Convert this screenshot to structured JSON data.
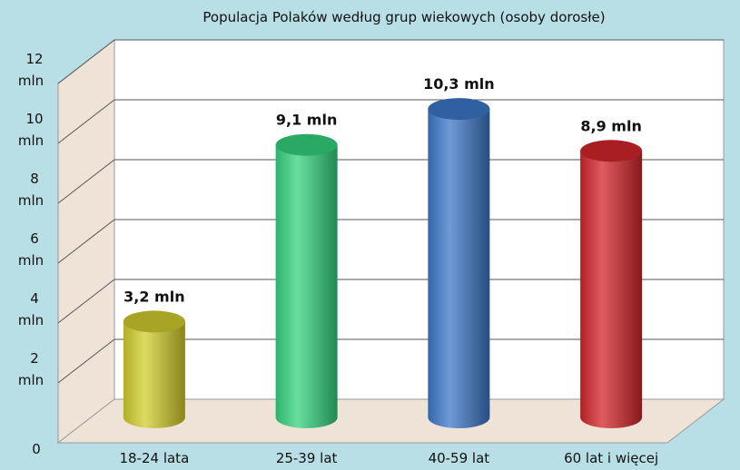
{
  "chart_data": {
    "type": "bar",
    "title": "Populacja Polaków według grup wiekowych (osoby dorosłe)",
    "categories": [
      "18-24 lata",
      "25-39 lat",
      "40-59 lat",
      "60 lat i więcej"
    ],
    "values": [
      3.2,
      9.1,
      10.3,
      8.9
    ],
    "data_labels": [
      "3,2 mln",
      "9,1 mln",
      "10,3 mln",
      "8,9 mln"
    ],
    "y_ticks": [
      {
        "value": 0,
        "label": "0"
      },
      {
        "value": 2,
        "label": "2 mln"
      },
      {
        "value": 4,
        "label": "4 mln"
      },
      {
        "value": 6,
        "label": "6 mln"
      },
      {
        "value": 8,
        "label": "8 mln"
      },
      {
        "value": 10,
        "label": "10 mln"
      },
      {
        "value": 12,
        "label": "12 mln"
      }
    ],
    "ylim": [
      0,
      12
    ],
    "xlabel": "",
    "ylabel": "",
    "grid": true,
    "legend": "none",
    "colors": {
      "bars": [
        "#d2cd2e",
        "#35d37e",
        "#3d78c8",
        "#d3262a"
      ],
      "background": "#b9dfe6",
      "back_wall": "#ffffff",
      "side_wall": "#eee3d6",
      "floor": "#eee3d6",
      "gridline": "#555555"
    }
  }
}
